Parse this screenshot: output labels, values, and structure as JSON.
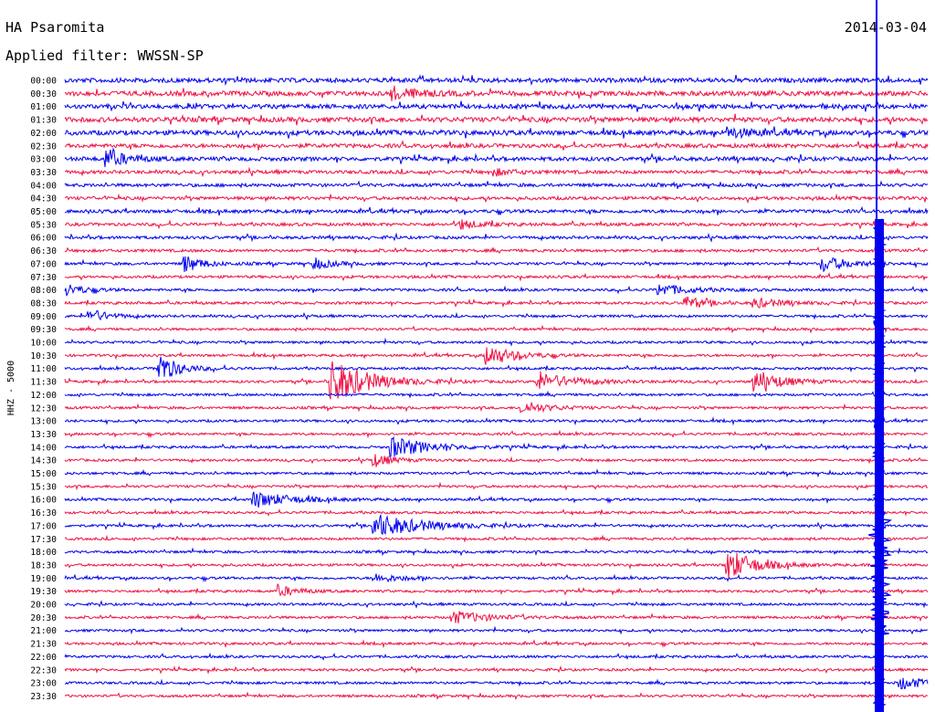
{
  "header": {
    "station": "HA Psaromita",
    "filter": "Applied filter: WWSSN-SP",
    "date": "2014-03-04"
  },
  "chart_data": {
    "type": "line",
    "ylabel": "HHZ - 5000",
    "rows": [
      "00:00",
      "00:30",
      "01:00",
      "01:30",
      "02:00",
      "02:30",
      "03:00",
      "03:30",
      "04:00",
      "04:30",
      "05:00",
      "05:30",
      "06:00",
      "06:30",
      "07:00",
      "07:30",
      "08:00",
      "08:30",
      "09:00",
      "09:30",
      "10:00",
      "10:30",
      "11:00",
      "11:30",
      "12:00",
      "12:30",
      "13:00",
      "13:30",
      "14:00",
      "14:30",
      "15:00",
      "15:30",
      "16:00",
      "16:30",
      "17:00",
      "17:30",
      "18:00",
      "18:30",
      "19:00",
      "19:30",
      "20:00",
      "20:30",
      "21:00",
      "21:30",
      "22:00",
      "22:30",
      "23:00",
      "23:30"
    ],
    "colors": [
      "#0000ee",
      "#ee1144"
    ],
    "current_time_marker_color": "#0000ee",
    "background_noise": [
      0.35,
      0.4,
      0.35,
      0.4,
      0.38,
      0.3,
      0.3,
      0.22,
      0.2,
      0.2,
      0.22,
      0.18,
      0.16,
      0.15,
      0.12,
      0.12,
      0.12,
      0.12,
      0.1,
      0.1,
      0.1,
      0.1,
      0.1,
      0.1,
      0.1,
      0.1,
      0.1,
      0.1,
      0.1,
      0.1,
      0.1,
      0.1,
      0.1,
      0.1,
      0.1,
      0.1,
      0.1,
      0.1,
      0.1,
      0.1,
      0.1,
      0.1,
      0.1,
      0.1,
      0.1,
      0.1,
      0.1,
      0.1
    ],
    "events": [
      {
        "row": 1,
        "x": 0.38,
        "amp": 1.2,
        "dur": 0.03
      },
      {
        "row": 4,
        "x": 0.77,
        "amp": 0.9,
        "dur": 0.03
      },
      {
        "row": 6,
        "x": 0.05,
        "amp": 1.8,
        "dur": 0.02
      },
      {
        "row": 7,
        "x": 0.5,
        "amp": 0.6,
        "dur": 0.02
      },
      {
        "row": 11,
        "x": 0.46,
        "amp": 0.9,
        "dur": 0.02
      },
      {
        "row": 14,
        "x": 0.14,
        "amp": 1.6,
        "dur": 0.02
      },
      {
        "row": 14,
        "x": 0.29,
        "amp": 1.0,
        "dur": 0.02
      },
      {
        "row": 14,
        "x": 0.88,
        "amp": 1.4,
        "dur": 0.03
      },
      {
        "row": 16,
        "x": 0.0,
        "amp": 1.3,
        "dur": 0.02
      },
      {
        "row": 16,
        "x": 0.69,
        "amp": 1.2,
        "dur": 0.03
      },
      {
        "row": 17,
        "x": 0.72,
        "amp": 1.3,
        "dur": 0.02
      },
      {
        "row": 17,
        "x": 0.8,
        "amp": 0.9,
        "dur": 0.03
      },
      {
        "row": 18,
        "x": 0.03,
        "amp": 1.3,
        "dur": 0.02
      },
      {
        "row": 21,
        "x": 0.49,
        "amp": 2.0,
        "dur": 0.03
      },
      {
        "row": 22,
        "x": 0.11,
        "amp": 3.0,
        "dur": 0.02
      },
      {
        "row": 23,
        "x": 0.31,
        "amp": 4.5,
        "dur": 0.04
      },
      {
        "row": 23,
        "x": 0.55,
        "amp": 1.6,
        "dur": 0.04
      },
      {
        "row": 23,
        "x": 0.8,
        "amp": 2.2,
        "dur": 0.03
      },
      {
        "row": 25,
        "x": 0.53,
        "amp": 1.1,
        "dur": 0.03
      },
      {
        "row": 28,
        "x": 0.38,
        "amp": 2.0,
        "dur": 0.04
      },
      {
        "row": 29,
        "x": 0.36,
        "amp": 1.2,
        "dur": 0.02
      },
      {
        "row": 32,
        "x": 0.22,
        "amp": 1.6,
        "dur": 0.04
      },
      {
        "row": 34,
        "x": 0.36,
        "amp": 2.4,
        "dur": 0.05
      },
      {
        "row": 37,
        "x": 0.77,
        "amp": 3.0,
        "dur": 0.03
      },
      {
        "row": 38,
        "x": 0.36,
        "amp": 0.8,
        "dur": 0.03
      },
      {
        "row": 39,
        "x": 0.25,
        "amp": 1.0,
        "dur": 0.02
      },
      {
        "row": 41,
        "x": 0.45,
        "amp": 1.2,
        "dur": 0.04
      },
      {
        "row": 46,
        "x": 0.97,
        "amp": 1.2,
        "dur": 0.03
      }
    ]
  }
}
